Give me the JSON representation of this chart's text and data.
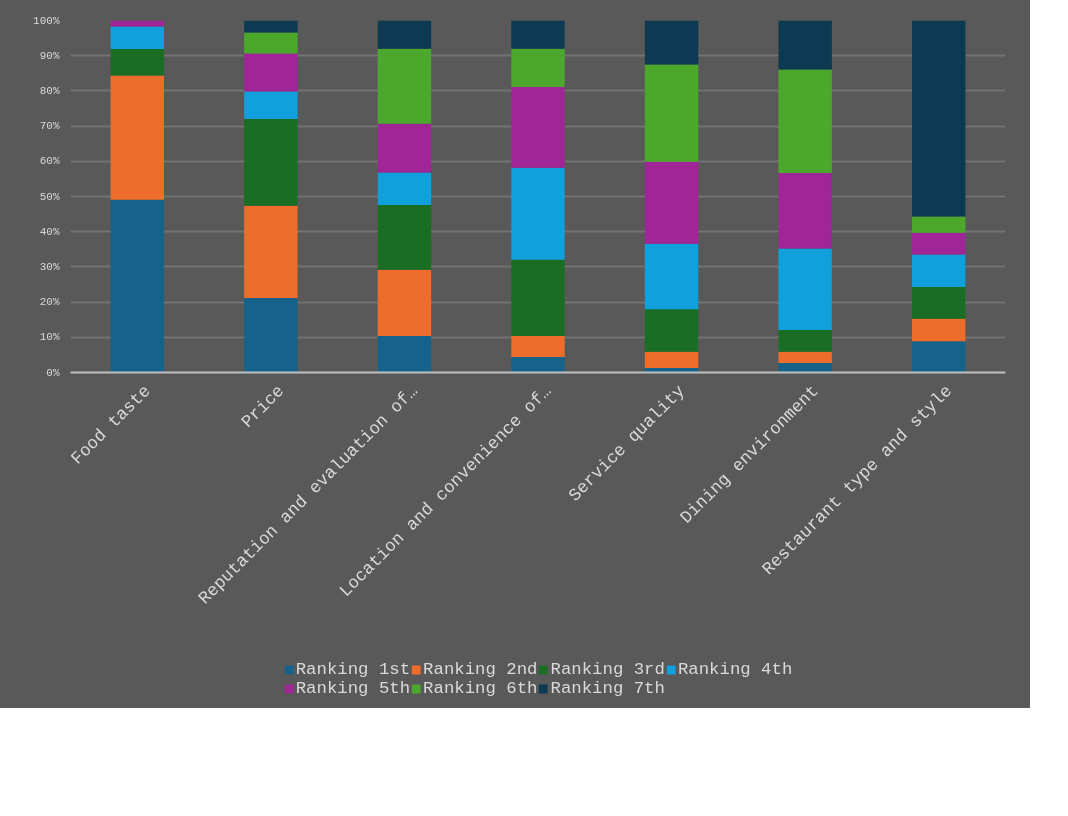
{
  "chart_data": {
    "type": "bar",
    "stacked": true,
    "categories": [
      "Food taste",
      "Price",
      "Reputation and evaluation of…",
      "Location and convenience of…",
      "Service quality",
      "Dining environment",
      "Restaurant type and style"
    ],
    "series": [
      {
        "name": "Ranking 1st",
        "color": "#15628a",
        "values": [
          49.1,
          21.2,
          10.4,
          4.4,
          1.3,
          2.7,
          8.9
        ]
      },
      {
        "name": "Ranking 2nd",
        "color": "#ee6d2a",
        "values": [
          35.3,
          26.2,
          18.8,
          6.0,
          4.6,
          3.2,
          6.4
        ]
      },
      {
        "name": "Ranking 3rd",
        "color": "#1a6e24",
        "values": [
          7.5,
          24.6,
          18.4,
          21.6,
          12.1,
          6.2,
          9.0
        ]
      },
      {
        "name": "Ranking 4th",
        "color": "#10a0db",
        "values": [
          6.4,
          7.8,
          9.2,
          26.2,
          18.6,
          23.1,
          9.2
        ]
      },
      {
        "name": "Ranking 5th",
        "color": "#a02596",
        "values": [
          1.7,
          10.8,
          13.9,
          22.9,
          23.3,
          21.5,
          6.2
        ]
      },
      {
        "name": "Ranking 6th",
        "color": "#4ca82c",
        "values": [
          0,
          6.0,
          21.3,
          10.9,
          27.6,
          29.4,
          4.6
        ]
      },
      {
        "name": "Ranking 7th",
        "color": "#0b3a52",
        "values": [
          0,
          3.4,
          8.0,
          8.0,
          12.5,
          13.9,
          55.7
        ]
      }
    ],
    "ylim": [
      0,
      100
    ],
    "yticks": [
      {
        "value": 0,
        "label": "0%"
      },
      {
        "value": 10,
        "label": "10%"
      },
      {
        "value": 20,
        "label": "20%"
      },
      {
        "value": 30,
        "label": "30%"
      },
      {
        "value": 40,
        "label": "40%"
      },
      {
        "value": 50,
        "label": "50%"
      },
      {
        "value": 60,
        "label": "60%"
      },
      {
        "value": 70,
        "label": "70%"
      },
      {
        "value": 80,
        "label": "80%"
      },
      {
        "value": 90,
        "label": "90%"
      },
      {
        "value": 100,
        "label": "100%"
      }
    ],
    "grid": "y",
    "legend": "bottom"
  }
}
